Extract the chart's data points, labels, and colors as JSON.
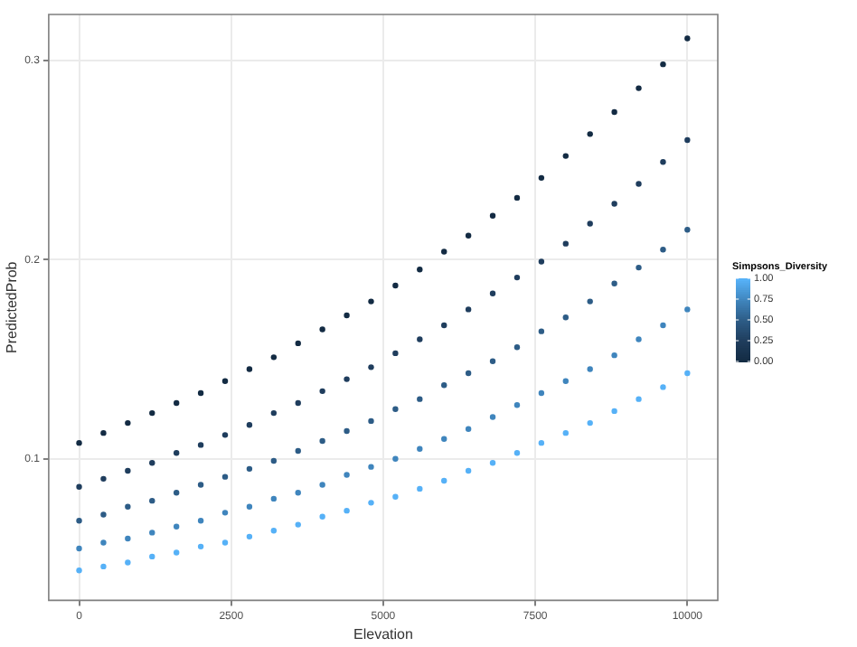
{
  "chart_data": {
    "type": "scatter",
    "xlabel": "Elevation",
    "ylabel": "PredictedProb",
    "clabel": "Simpsons_Diversity",
    "clim": [
      0,
      1
    ],
    "cticks": [
      {
        "value": 0,
        "label": "0.00"
      },
      {
        "value": 0.25,
        "label": "0.25"
      },
      {
        "value": 0.5,
        "label": "0.50"
      },
      {
        "value": 0.75,
        "label": "0.75"
      },
      {
        "value": 1,
        "label": "1.00"
      }
    ],
    "x": [
      0,
      400,
      800,
      1200,
      1600,
      2000,
      2400,
      2800,
      3200,
      3600,
      4000,
      4400,
      4800,
      5200,
      5600,
      6000,
      6400,
      6800,
      7200,
      7600,
      8000,
      8400,
      8800,
      9200,
      9600,
      10000
    ],
    "series": [
      {
        "color": "#132b43",
        "values": [
          0.108,
          0.113,
          0.118,
          0.123,
          0.128,
          0.133,
          0.139,
          0.145,
          0.151,
          0.158,
          0.165,
          0.172,
          0.179,
          0.187,
          0.195,
          0.204,
          0.212,
          0.222,
          0.231,
          0.241,
          0.252,
          0.263,
          0.274,
          0.286,
          0.298,
          0.311
        ]
      },
      {
        "color": "#1f3d5d",
        "values": [
          0.086,
          0.09,
          0.094,
          0.098,
          0.103,
          0.107,
          0.112,
          0.117,
          0.123,
          0.128,
          0.134,
          0.14,
          0.146,
          0.153,
          0.16,
          0.167,
          0.175,
          0.183,
          0.191,
          0.199,
          0.208,
          0.218,
          0.228,
          0.238,
          0.249,
          0.26
        ]
      },
      {
        "color": "#2d5c86",
        "values": [
          0.069,
          0.072,
          0.076,
          0.079,
          0.083,
          0.087,
          0.091,
          0.095,
          0.099,
          0.104,
          0.109,
          0.114,
          0.119,
          0.125,
          0.13,
          0.137,
          0.143,
          0.149,
          0.156,
          0.164,
          0.171,
          0.179,
          0.188,
          0.196,
          0.205,
          0.215
        ]
      },
      {
        "color": "#3f85bd",
        "values": [
          0.055,
          0.058,
          0.06,
          0.063,
          0.066,
          0.069,
          0.073,
          0.076,
          0.08,
          0.083,
          0.087,
          0.092,
          0.096,
          0.1,
          0.105,
          0.11,
          0.115,
          0.121,
          0.127,
          0.133,
          0.139,
          0.145,
          0.152,
          0.16,
          0.167,
          0.175
        ]
      },
      {
        "color": "#56b1f7",
        "values": [
          0.044,
          0.046,
          0.048,
          0.051,
          0.053,
          0.056,
          0.058,
          0.061,
          0.064,
          0.067,
          0.071,
          0.074,
          0.078,
          0.081,
          0.085,
          0.089,
          0.094,
          0.098,
          0.103,
          0.108,
          0.113,
          0.118,
          0.124,
          0.13,
          0.136,
          0.143
        ]
      }
    ],
    "xlim": [
      -500,
      10500
    ],
    "xticks": [
      0,
      2500,
      5000,
      7500,
      10000
    ],
    "ylim": [
      0.029,
      0.323
    ],
    "yticks": [
      0.1,
      0.2,
      0.3
    ],
    "grid": true,
    "marker": "circle"
  }
}
